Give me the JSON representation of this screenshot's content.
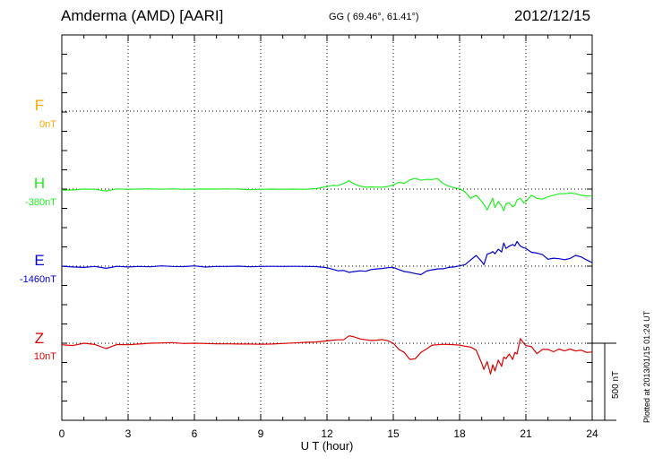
{
  "header": {
    "title": "Amderma (AMD)  [AARI]",
    "coords": "GG ( 69.46°,  61.41°)",
    "date": "2012/12/15",
    "plotted_note": "Plotted at 2013/01/15 01:24  UT"
  },
  "chart_data": {
    "type": "line",
    "xlabel": "U T (hour)",
    "xlim": [
      0,
      24
    ],
    "x_ticks": [
      0,
      3,
      6,
      9,
      12,
      15,
      18,
      21,
      24
    ],
    "scale_bar": "500 nT",
    "series": [
      {
        "name": "F",
        "baseline": "0nT",
        "color": "#ffa500",
        "x": [],
        "y": []
      },
      {
        "name": "H",
        "baseline": "-380nT",
        "color": "#22ee22",
        "x": [
          0,
          0.5,
          1,
          1.5,
          2,
          2.5,
          3,
          3.5,
          4,
          4.5,
          5,
          5.5,
          6,
          6.5,
          7,
          7.5,
          8,
          8.5,
          9,
          9.5,
          10,
          10.5,
          11,
          11.5,
          12,
          12.25,
          12.5,
          12.75,
          13,
          13.25,
          13.5,
          13.75,
          14,
          14.25,
          14.5,
          14.75,
          15,
          15.25,
          15.5,
          15.75,
          16,
          16.25,
          16.5,
          16.75,
          17,
          17.25,
          17.5,
          17.75,
          18,
          18.25,
          18.5,
          18.75,
          19,
          19.1,
          19.25,
          19.4,
          19.5,
          19.6,
          19.75,
          19.9,
          20,
          20.1,
          20.25,
          20.4,
          20.5,
          20.6,
          20.75,
          20.9,
          21,
          21.25,
          21.5,
          21.75,
          22,
          22.25,
          22.5,
          22.75,
          23,
          23.25,
          23.5,
          23.75,
          24
        ],
        "y": [
          -388,
          -385,
          -380,
          -381,
          -393,
          -379,
          -382,
          -380,
          -378,
          -381,
          -378,
          -382,
          -380,
          -380,
          -380,
          -379,
          -380,
          -384,
          -381,
          -380,
          -381,
          -380,
          -382,
          -377,
          -364,
          -356,
          -358,
          -344,
          -326,
          -348,
          -361,
          -368,
          -366,
          -367,
          -368,
          -363,
          -354,
          -336,
          -343,
          -320,
          -311,
          -323,
          -317,
          -318,
          -312,
          -344,
          -360,
          -372,
          -376,
          -400,
          -440,
          -420,
          -460,
          -480,
          -515,
          -470,
          -440,
          -500,
          -460,
          -490,
          -520,
          -475,
          -470,
          -495,
          -485,
          -450,
          -440,
          -470,
          -460,
          -420,
          -440,
          -445,
          -430,
          -420,
          -410,
          -410,
          -405,
          -410,
          -420,
          -425,
          -425
        ]
      },
      {
        "name": "E",
        "baseline": "-1460nT",
        "color": "#0000cc",
        "x": [
          0,
          0.5,
          1,
          1.5,
          2,
          2.5,
          3,
          3.5,
          4,
          4.5,
          5,
          5.5,
          6,
          6.5,
          7,
          7.5,
          8,
          8.5,
          9,
          9.5,
          10,
          10.5,
          11,
          11.5,
          12,
          12.25,
          12.5,
          12.75,
          13,
          13.25,
          13.5,
          13.75,
          14,
          14.25,
          14.5,
          14.75,
          15,
          15.25,
          15.5,
          15.75,
          16,
          16.25,
          16.5,
          16.75,
          17,
          17.25,
          17.5,
          17.75,
          18,
          18.25,
          18.5,
          18.75,
          19,
          19.1,
          19.25,
          19.4,
          19.5,
          19.6,
          19.75,
          19.9,
          20,
          20.1,
          20.25,
          20.4,
          20.5,
          20.6,
          20.75,
          20.9,
          21,
          21.25,
          21.5,
          21.75,
          22,
          22.25,
          22.5,
          22.75,
          23,
          23.25,
          23.5,
          23.75,
          24
        ],
        "y": [
          -1460,
          -1465,
          -1468,
          -1462,
          -1474,
          -1461,
          -1465,
          -1462,
          -1464,
          -1458,
          -1462,
          -1463,
          -1458,
          -1466,
          -1462,
          -1462,
          -1460,
          -1464,
          -1462,
          -1461,
          -1462,
          -1461,
          -1462,
          -1463,
          -1470,
          -1480,
          -1490,
          -1488,
          -1500,
          -1495,
          -1490,
          -1493,
          -1482,
          -1478,
          -1475,
          -1470,
          -1468,
          -1482,
          -1495,
          -1500,
          -1508,
          -1515,
          -1492,
          -1484,
          -1478,
          -1477,
          -1468,
          -1465,
          -1458,
          -1450,
          -1420,
          -1390,
          -1430,
          -1450,
          -1382,
          -1375,
          -1365,
          -1380,
          -1350,
          -1368,
          -1310,
          -1345,
          -1330,
          -1320,
          -1328,
          -1300,
          -1330,
          -1340,
          -1345,
          -1370,
          -1375,
          -1385,
          -1415,
          -1408,
          -1412,
          -1418,
          -1410,
          -1390,
          -1400,
          -1420,
          -1437
        ]
      },
      {
        "name": "Z",
        "baseline": "10nT",
        "color": "#dd0000",
        "x": [
          0,
          0.5,
          1,
          1.5,
          2,
          2.5,
          3,
          3.5,
          4,
          4.5,
          5,
          5.5,
          6,
          6.5,
          7,
          7.5,
          8,
          8.5,
          9,
          9.5,
          10,
          10.5,
          11,
          11.5,
          12,
          12.25,
          12.5,
          12.75,
          13,
          13.25,
          13.5,
          13.75,
          14,
          14.25,
          14.5,
          14.75,
          15,
          15.25,
          15.5,
          15.75,
          16,
          16.25,
          16.5,
          16.75,
          17,
          17.25,
          17.5,
          17.75,
          18,
          18.25,
          18.5,
          18.75,
          19,
          19.1,
          19.25,
          19.4,
          19.5,
          19.6,
          19.75,
          19.9,
          20,
          20.1,
          20.25,
          20.4,
          20.5,
          20.6,
          20.75,
          20.9,
          21,
          21.25,
          21.5,
          21.75,
          22,
          22.25,
          22.5,
          22.75,
          23,
          23.25,
          23.5,
          23.75,
          24
        ],
        "y": [
          0,
          -5,
          10,
          2,
          -25,
          2,
          0,
          5,
          10,
          12,
          14,
          8,
          10,
          8,
          6,
          6,
          5,
          5,
          3,
          5,
          8,
          12,
          16,
          18,
          25,
          30,
          32,
          32,
          58,
          50,
          38,
          32,
          28,
          30,
          34,
          26,
          10,
          -30,
          -50,
          -95,
          -90,
          -50,
          -28,
          -2,
          0,
          3,
          2,
          0,
          -2,
          -10,
          -15,
          -35,
          -120,
          -160,
          -110,
          -190,
          -130,
          -170,
          -100,
          -140,
          -80,
          -90,
          -60,
          -95,
          -50,
          -60,
          40,
          10,
          -5,
          -12,
          -58,
          -30,
          -30,
          -45,
          -28,
          -40,
          -28,
          -40,
          -35,
          -50,
          -47
        ]
      }
    ]
  }
}
